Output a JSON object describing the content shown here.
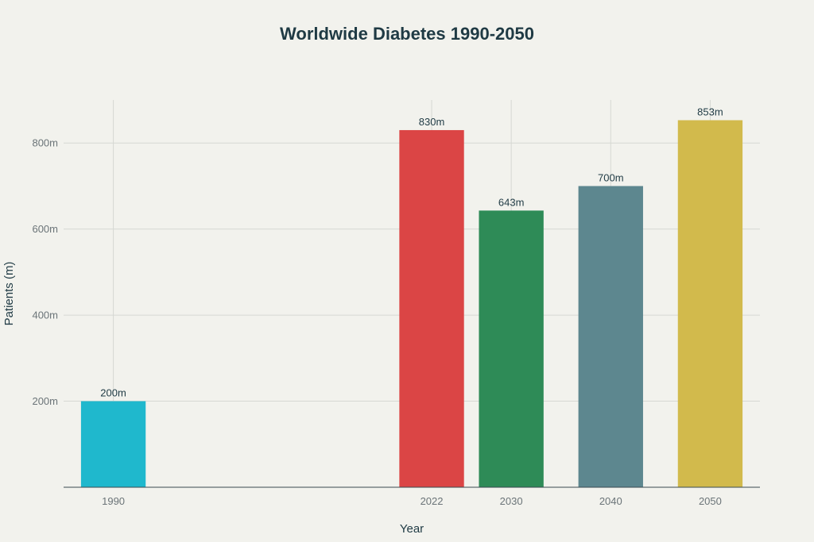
{
  "chart_data": {
    "type": "bar",
    "title": "Worldwide Diabetes 1990-2050",
    "xlabel": "Year",
    "ylabel": "Patients (m)",
    "x": [
      1990,
      2022,
      2030,
      2040,
      2050
    ],
    "categories": [
      "1990",
      "2022",
      "2030",
      "2040",
      "2050"
    ],
    "values": [
      200,
      830,
      643,
      700,
      853
    ],
    "data_labels": [
      "200m",
      "830m",
      "643m",
      "700m",
      "853m"
    ],
    "colors": [
      "#1fb8cd",
      "#db4545",
      "#2e8b57",
      "#5d878f",
      "#d2ba4c"
    ],
    "xlim": [
      1985,
      2055
    ],
    "ylim": [
      0,
      900
    ],
    "yticks": [
      200,
      400,
      600,
      800
    ],
    "ytick_labels": [
      "200m",
      "400m",
      "600m",
      "800m"
    ],
    "grid": true,
    "legend": "none"
  }
}
